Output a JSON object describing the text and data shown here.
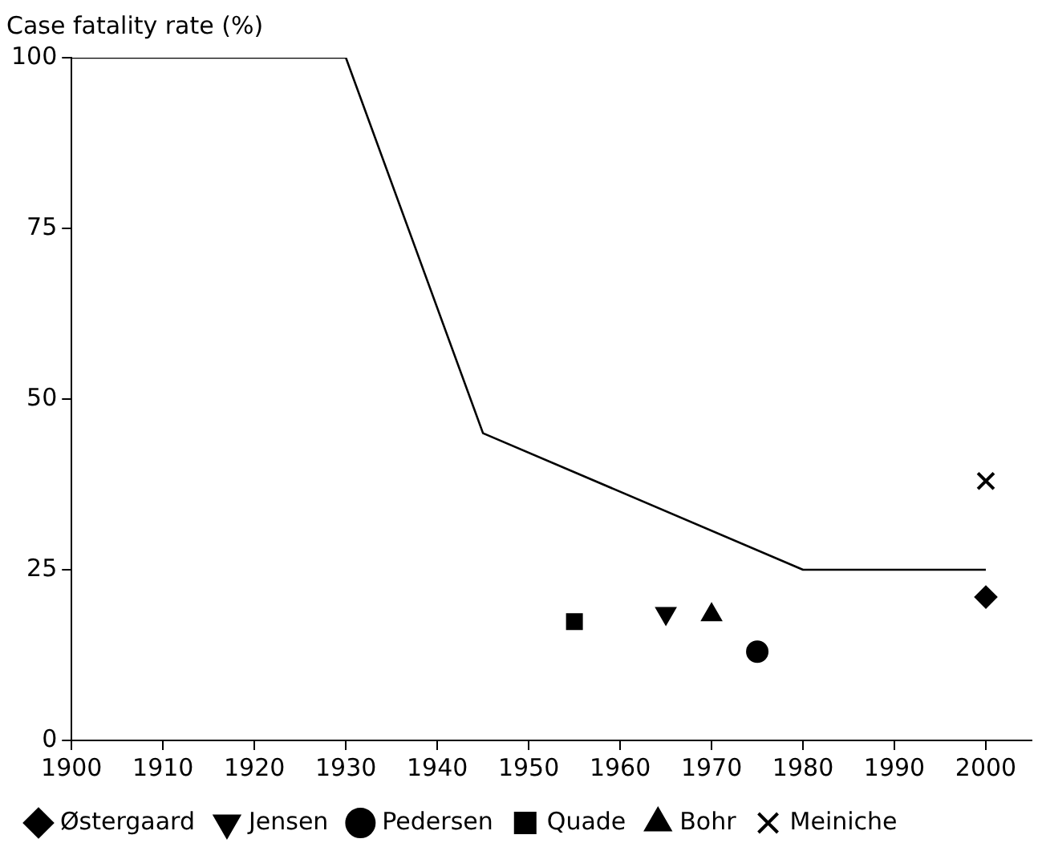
{
  "chart_data": {
    "type": "scatter",
    "ylabel": "Case fatality rate (%)",
    "xlim": [
      1900,
      2005
    ],
    "xticks": [
      1900,
      1910,
      1920,
      1930,
      1940,
      1950,
      1960,
      1970,
      1980,
      1990,
      2000
    ],
    "ylim": [
      0,
      100
    ],
    "yticks": [
      0,
      25,
      50,
      75,
      100
    ],
    "grid": false,
    "legend": "bottom",
    "series": [
      {
        "type": "line",
        "color": "#000000",
        "marker": "none",
        "x": [
          1900,
          1930,
          1945,
          1980,
          2000
        ],
        "values": [
          100,
          100,
          45,
          25,
          25
        ]
      },
      {
        "name": "Østergaard",
        "color": "#000000",
        "marker": "diamond",
        "x": [
          2000
        ],
        "values": [
          21
        ]
      },
      {
        "name": "Jensen",
        "color": "#000000",
        "marker": "triangle-down",
        "x": [
          1965
        ],
        "values": [
          18.6
        ]
      },
      {
        "name": "Pedersen",
        "color": "#000000",
        "marker": "circle",
        "x": [
          1975
        ],
        "values": [
          13
        ]
      },
      {
        "name": "Quade",
        "color": "#000000",
        "marker": "square",
        "x": [
          1955
        ],
        "values": [
          17.4
        ]
      },
      {
        "name": "Bohr",
        "color": "#000000",
        "marker": "triangle",
        "x": [
          1970
        ],
        "values": [
          18.4
        ]
      },
      {
        "name": "Meiniche",
        "color": "#000000",
        "marker": "cross",
        "x": [
          2000
        ],
        "values": [
          38
        ]
      }
    ]
  }
}
